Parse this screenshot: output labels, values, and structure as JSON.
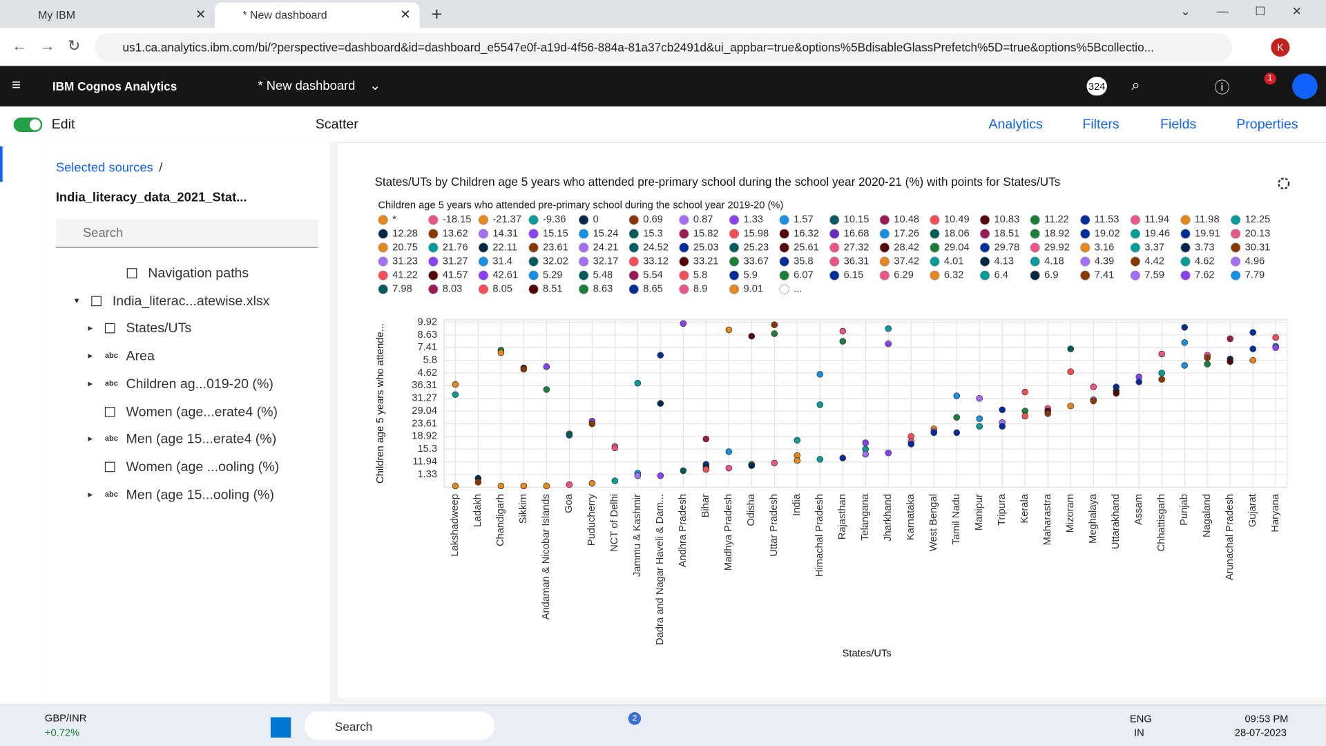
{
  "browser": {
    "tabs": [
      "My IBM",
      "* New dashboard"
    ],
    "url": "us1.ca.analytics.ibm.com/bi/?perspective=dashboard&id=dashboard_e5547e0f-a19d-4f56-884a-81a37cb2491d&ui_appbar=true&options%5BdisableGlassPrefetch%5D=true&options%5Bcollectio...",
    "profile": "K"
  },
  "app": {
    "product": "IBM Cognos Analytics",
    "dashboard": "* New dashboard",
    "badge": "324",
    "notifications": "1"
  },
  "toolbar": {
    "edit": "Edit",
    "widget": "Scatter",
    "right": [
      "Analytics",
      "Filters",
      "Fields",
      "Properties"
    ]
  },
  "sidebar": {
    "breadcrumb": "Selected sources",
    "separator": "/",
    "source": "India_literacy_data_2021_Stat...",
    "search": "Search",
    "tree": [
      {
        "label": "Navigation paths"
      },
      {
        "label": "India_literac...atewise.xlsx"
      },
      {
        "label": "States/UTs"
      },
      {
        "label": "Area",
        "icon": "abc"
      },
      {
        "label": "Children ag...019-20 (%)",
        "icon": "abc"
      },
      {
        "label": "Women (age...erate4 (%)"
      },
      {
        "label": "Men (age 15...erate4 (%)",
        "icon": "abc"
      },
      {
        "label": "Women (age ...ooling (%)"
      },
      {
        "label": "Men (age 15...ooling (%)",
        "icon": "abc"
      }
    ]
  },
  "chart_data": {
    "type": "scatter",
    "title": "States/UTs by Children age 5 years who attended pre-primary school during the school year 2020-21 (%) with points for States/UTs",
    "legend_title": "Children age 5 years who attended pre-primary school during the school year 2019-20 (%)",
    "x_label": "States/UTs",
    "y_label": "Children age 5 years who attende...",
    "grid": true,
    "legend": [
      {
        "label": "*",
        "color": "#e8871a"
      },
      {
        "label": "-18.15",
        "color": "#ee538b"
      },
      {
        "label": "-21.37",
        "color": "#e8871a"
      },
      {
        "label": "-9.36",
        "color": "#009d9a"
      },
      {
        "label": "0",
        "color": "#012749"
      },
      {
        "label": "0.69",
        "color": "#8a3800"
      },
      {
        "label": "0.87",
        "color": "#a56eff"
      },
      {
        "label": "1.33",
        "color": "#8a3ffc"
      },
      {
        "label": "1.57",
        "color": "#1192e8"
      },
      {
        "label": "10.15",
        "color": "#005d5d"
      },
      {
        "label": "10.48",
        "color": "#9f1853"
      },
      {
        "label": "10.49",
        "color": "#fa4d56"
      },
      {
        "label": "10.83",
        "color": "#570408"
      },
      {
        "label": "11.22",
        "color": "#198038"
      },
      {
        "label": "11.53",
        "color": "#002d9c"
      },
      {
        "label": "11.94",
        "color": "#ee538b"
      },
      {
        "label": "11.98",
        "color": "#e8871a"
      },
      {
        "label": "12.25",
        "color": "#009d9a"
      },
      {
        "label": "12.28",
        "color": "#012749"
      },
      {
        "label": "13.62",
        "color": "#8a3800"
      },
      {
        "label": "14.31",
        "color": "#a56eff"
      },
      {
        "label": "15.15",
        "color": "#8a3ffc"
      },
      {
        "label": "15.24",
        "color": "#1192e8"
      },
      {
        "label": "15.3",
        "color": "#005d5d"
      },
      {
        "label": "15.82",
        "color": "#9f1853"
      },
      {
        "label": "15.98",
        "color": "#fa4d56"
      },
      {
        "label": "16.32",
        "color": "#570408"
      },
      {
        "label": "16.68",
        "color": "#6929c4"
      },
      {
        "label": "17.26",
        "color": "#1192e8"
      },
      {
        "label": "18.06",
        "color": "#005d5d"
      },
      {
        "label": "18.51",
        "color": "#9f1853"
      },
      {
        "label": "18.92",
        "color": "#198038"
      },
      {
        "label": "19.02",
        "color": "#002d9c"
      },
      {
        "label": "19.46",
        "color": "#009d9a"
      },
      {
        "label": "19.91",
        "color": "#002d9c"
      },
      {
        "label": "20.13",
        "color": "#ee538b"
      },
      {
        "label": "20.75",
        "color": "#e8871a"
      },
      {
        "label": "21.76",
        "color": "#009d9a"
      },
      {
        "label": "22.11",
        "color": "#012749"
      },
      {
        "label": "23.61",
        "color": "#8a3800"
      },
      {
        "label": "24.21",
        "color": "#a56eff"
      },
      {
        "label": "24.52",
        "color": "#005d5d"
      },
      {
        "label": "25.03",
        "color": "#002d9c"
      },
      {
        "label": "25.23",
        "color": "#005d5d"
      },
      {
        "label": "25.61",
        "color": "#570408"
      },
      {
        "label": "27.32",
        "color": "#ee538b"
      },
      {
        "label": "28.42",
        "color": "#570408"
      },
      {
        "label": "29.04",
        "color": "#198038"
      },
      {
        "label": "29.78",
        "color": "#002d9c"
      },
      {
        "label": "29.92",
        "color": "#ee538b"
      },
      {
        "label": "3.16",
        "color": "#e8871a"
      },
      {
        "label": "3.37",
        "color": "#009d9a"
      },
      {
        "label": "3.73",
        "color": "#012749"
      },
      {
        "label": "30.31",
        "color": "#8a3800"
      },
      {
        "label": "31.23",
        "color": "#a56eff"
      },
      {
        "label": "31.27",
        "color": "#8a3ffc"
      },
      {
        "label": "31.4",
        "color": "#1192e8"
      },
      {
        "label": "32.02",
        "color": "#005d5d"
      },
      {
        "label": "32.17",
        "color": "#a56eff"
      },
      {
        "label": "33.12",
        "color": "#fa4d56"
      },
      {
        "label": "33.21",
        "color": "#570408"
      },
      {
        "label": "33.67",
        "color": "#198038"
      },
      {
        "label": "35.8",
        "color": "#002d9c"
      },
      {
        "label": "36.31",
        "color": "#ee538b"
      },
      {
        "label": "37.42",
        "color": "#e8871a"
      },
      {
        "label": "4.01",
        "color": "#009d9a"
      },
      {
        "label": "4.13",
        "color": "#012749"
      },
      {
        "label": "4.18",
        "color": "#009d9a"
      },
      {
        "label": "4.39",
        "color": "#a56eff"
      },
      {
        "label": "4.42",
        "color": "#8a3800"
      },
      {
        "label": "4.62",
        "color": "#009d9a"
      },
      {
        "label": "4.96",
        "color": "#a56eff"
      },
      {
        "label": "41.22",
        "color": "#fa4d56"
      },
      {
        "label": "41.57",
        "color": "#570408"
      },
      {
        "label": "42.61",
        "color": "#8a3ffc"
      },
      {
        "label": "5.29",
        "color": "#1192e8"
      },
      {
        "label": "5.48",
        "color": "#005d5d"
      },
      {
        "label": "5.54",
        "color": "#9f1853"
      },
      {
        "label": "5.8",
        "color": "#fa4d56"
      },
      {
        "label": "5.9",
        "color": "#002d9c"
      },
      {
        "label": "6.07",
        "color": "#198038"
      },
      {
        "label": "6.15",
        "color": "#002d9c"
      },
      {
        "label": "6.29",
        "color": "#ee538b"
      },
      {
        "label": "6.32",
        "color": "#e8871a"
      },
      {
        "label": "6.4",
        "color": "#009d9a"
      },
      {
        "label": "6.9",
        "color": "#012749"
      },
      {
        "label": "7.41",
        "color": "#8a3800"
      },
      {
        "label": "7.59",
        "color": "#a56eff"
      },
      {
        "label": "7.62",
        "color": "#8a3ffc"
      },
      {
        "label": "7.79",
        "color": "#1192e8"
      },
      {
        "label": "7.98",
        "color": "#005d5d"
      },
      {
        "label": "8.03",
        "color": "#9f1853"
      },
      {
        "label": "8.05",
        "color": "#fa4d56"
      },
      {
        "label": "8.51",
        "color": "#570408"
      },
      {
        "label": "8.63",
        "color": "#198038"
      },
      {
        "label": "8.65",
        "color": "#002d9c"
      },
      {
        "label": "8.9",
        "color": "#ee538b"
      },
      {
        "label": "9.01",
        "color": "#e8871a"
      },
      {
        "label": "...",
        "color": "#ffffff"
      }
    ],
    "categories": [
      "Lakshadweep",
      "Ladakh",
      "Chandigarh",
      "Sikkim",
      "Andaman & Nicobar Islands",
      "Goa",
      "Puducherry",
      "NCT of Delhi",
      "Jammu & Kashmir",
      "Dadra and Nagar Haveli & Dam...",
      "Andhra Pradesh",
      "Bihar",
      "Madhya Pradesh",
      "Odisha",
      "Uttar Pradesh",
      "India",
      "Himachal Pradesh",
      "Rajasthan",
      "Telangana",
      "Jharkhand",
      "Karnataka",
      "West Bengal",
      "Tamil Nadu",
      "Manipur",
      "Tripura",
      "Kerala",
      "Maharastra",
      "Mizoram",
      "Meghalaya",
      "Uttarakhand",
      "Assam",
      "Chhattisgarh",
      "Punjab",
      "Nagaland",
      "Arunachal Pradesh",
      "Gujarat",
      "Haryana"
    ],
    "ylim": [
      0,
      13.2
    ],
    "yticks": [
      {
        "value": 1,
        "label": "1.33"
      },
      {
        "value": 2,
        "label": "11.94"
      },
      {
        "value": 3,
        "label": "15.3"
      },
      {
        "value": 4,
        "label": "18.92"
      },
      {
        "value": 5,
        "label": "23.61"
      },
      {
        "value": 6,
        "label": "29.04"
      },
      {
        "value": 7,
        "label": "31.27"
      },
      {
        "value": 8,
        "label": "36.31"
      },
      {
        "value": 9,
        "label": "4.62"
      },
      {
        "value": 10,
        "label": "5.8"
      },
      {
        "value": 11,
        "label": "7.41"
      },
      {
        "value": 12,
        "label": "8.63"
      },
      {
        "value": 13,
        "label": "9.92"
      }
    ],
    "points": {
      "x": [
        "Lakshadweep",
        "Lakshadweep",
        "Lakshadweep",
        "Ladakh",
        "Ladakh",
        "Chandigarh",
        "Chandigarh",
        "Chandigarh",
        "Sikkim",
        "Sikkim",
        "Sikkim",
        "Andaman & Nicobar Islands",
        "Andaman & Nicobar Islands",
        "Andaman & Nicobar Islands",
        "Goa",
        "Goa",
        "Goa",
        "Puducherry",
        "Puducherry",
        "Puducherry",
        "NCT of Delhi",
        "NCT of Delhi",
        "NCT of Delhi",
        "Jammu & Kashmir",
        "Jammu & Kashmir",
        "Jammu & Kashmir",
        "Dadra and Nagar Haveli & Dam...",
        "Dadra and Nagar Haveli & Dam...",
        "Dadra and Nagar Haveli & Dam...",
        "Andhra Pradesh",
        "Andhra Pradesh",
        "Bihar",
        "Bihar",
        "Bihar",
        "Bihar",
        "Madhya Pradesh",
        "Madhya Pradesh",
        "Madhya Pradesh",
        "Odisha",
        "Odisha",
        "Odisha",
        "Uttar Pradesh",
        "Uttar Pradesh",
        "Uttar Pradesh",
        "India",
        "India",
        "India",
        "Himachal Pradesh",
        "Himachal Pradesh",
        "Himachal Pradesh",
        "Rajasthan",
        "Rajasthan",
        "Rajasthan",
        "Telangana",
        "Telangana",
        "Telangana",
        "Jharkhand",
        "Jharkhand",
        "Jharkhand",
        "Karnataka",
        "Karnataka",
        "Karnataka",
        "West Bengal",
        "West Bengal",
        "West Bengal",
        "Tamil Nadu",
        "Tamil Nadu",
        "Tamil Nadu",
        "Manipur",
        "Manipur",
        "Manipur",
        "Tripura",
        "Tripura",
        "Tripura",
        "Kerala",
        "Kerala",
        "Kerala",
        "Maharastra",
        "Maharastra",
        "Maharastra",
        "Mizoram",
        "Mizoram",
        "Mizoram",
        "Meghalaya",
        "Meghalaya",
        "Meghalaya",
        "Uttarakhand",
        "Uttarakhand",
        "Uttarakhand",
        "Assam",
        "Assam",
        "Chhattisgarh",
        "Chhattisgarh",
        "Chhattisgarh",
        "Punjab",
        "Punjab",
        "Punjab",
        "Nagaland",
        "Nagaland",
        "Nagaland",
        "Arunachal Pradesh",
        "Arunachal Pradesh",
        "Arunachal Pradesh",
        "Gujarat",
        "Gujarat",
        "Gujarat",
        "Haryana",
        "Haryana",
        "Haryana"
      ],
      "y": [
        8.1,
        7.3,
        0.1,
        0.7,
        0.4,
        10.8,
        10.6,
        0.1,
        9.4,
        9.3,
        0.1,
        9.5,
        7.7,
        0.1,
        4.2,
        4.1,
        0.2,
        5.2,
        5.0,
        0.3,
        3.2,
        3.1,
        0.5,
        8.2,
        1.1,
        0.9,
        10.4,
        6.6,
        0.9,
        12.9,
        1.3,
        3.8,
        1.8,
        1.6,
        1.4,
        12.4,
        2.8,
        1.5,
        11.9,
        1.8,
        1.7,
        12.8,
        12.1,
        1.9,
        3.7,
        2.5,
        2.1,
        8.9,
        6.5,
        2.2,
        12.3,
        11.5,
        2.3,
        3.5,
        3.0,
        2.6,
        12.5,
        11.3,
        2.7,
        4.0,
        3.6,
        3.4,
        4.6,
        4.4,
        4.3,
        7.2,
        5.5,
        4.3,
        7.0,
        5.4,
        4.8,
        6.1,
        5.1,
        4.8,
        7.5,
        6.0,
        5.6,
        6.2,
        6.0,
        5.8,
        10.9,
        9.1,
        6.4,
        7.9,
        6.9,
        6.8,
        7.9,
        7.6,
        7.4,
        8.7,
        8.3,
        10.5,
        9.0,
        8.5,
        12.6,
        11.4,
        9.6,
        10.4,
        10.2,
        9.7,
        11.7,
        10.1,
        9.9,
        12.2,
        10.9,
        10.0,
        11.8,
        11.1,
        11.0
      ],
      "color": [
        "#e8871a",
        "#009d9a",
        "#e8871a",
        "#012749",
        "#8a3800",
        "#198038",
        "#e8871a",
        "#e8871a",
        "#570408",
        "#8a3800",
        "#e8871a",
        "#8a3ffc",
        "#198038",
        "#e8871a",
        "#198038",
        "#005d5d",
        "#ee538b",
        "#8a3ffc",
        "#8a3800",
        "#e8871a",
        "#fa4d56",
        "#ee538b",
        "#009d9a",
        "#009d9a",
        "#1192e8",
        "#a56eff",
        "#002d9c",
        "#012749",
        "#8a3ffc",
        "#8a3ffc",
        "#005d5d",
        "#9f1853",
        "#002d9c",
        "#012749",
        "#fa4d56",
        "#e8871a",
        "#1192e8",
        "#ee538b",
        "#570408",
        "#198038",
        "#012749",
        "#8a3800",
        "#198038",
        "#ee538b",
        "#009d9a",
        "#e8871a",
        "#e8871a",
        "#1192e8",
        "#009d9a",
        "#009d9a",
        "#ee538b",
        "#198038",
        "#002d9c",
        "#8a3ffc",
        "#009d9a",
        "#a56eff",
        "#009d9a",
        "#8a3ffc",
        "#8a3ffc",
        "#fa4d56",
        "#ee538b",
        "#002d9c",
        "#e8871a",
        "#a56eff",
        "#002d9c",
        "#1192e8",
        "#198038",
        "#002d9c",
        "#a56eff",
        "#1192e8",
        "#009d9a",
        "#002d9c",
        "#a56eff",
        "#002d9c",
        "#fa4d56",
        "#198038",
        "#fa4d56",
        "#ee538b",
        "#570408",
        "#8a3800",
        "#005d5d",
        "#fa4d56",
        "#e8871a",
        "#ee538b",
        "#a56eff",
        "#8a3800",
        "#002d9c",
        "#012749",
        "#570408",
        "#8a3ffc",
        "#002d9c",
        "#ee538b",
        "#009d9a",
        "#8a3800",
        "#002d9c",
        "#1192e8",
        "#1192e8",
        "#ee538b",
        "#8a3800",
        "#198038",
        "#9f1853",
        "#012749",
        "#570408",
        "#002d9c",
        "#002d9c",
        "#e8871a",
        "#fa4d56",
        "#009d9a",
        "#8a3ffc"
      ]
    }
  },
  "taskbar": {
    "ticker": "GBP/INR",
    "change": "+0.72%",
    "search": "Search",
    "whatsapp_badge": "2",
    "lang": "ENG",
    "region": "IN",
    "time": "09:53 PM",
    "date": "28-07-2023"
  }
}
